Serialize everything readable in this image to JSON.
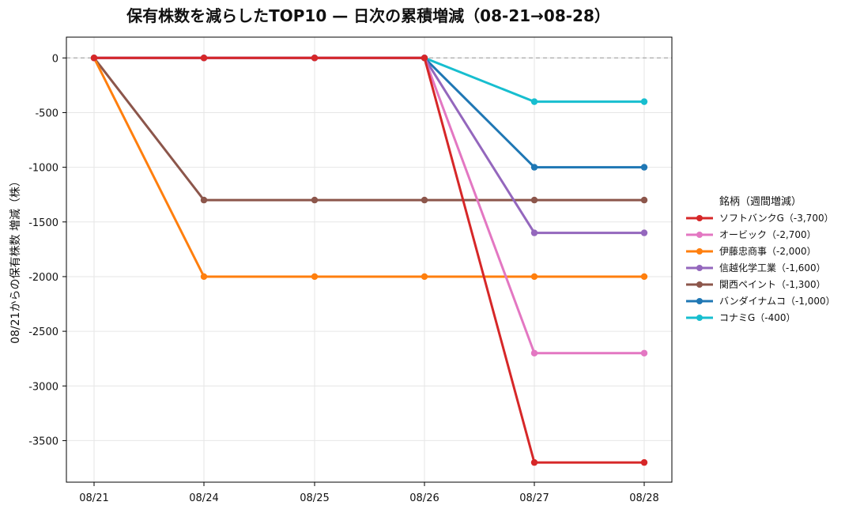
{
  "chart_data": {
    "type": "line",
    "title": "保有株数を減らしたTOP10 — 日次の累積増減（08-21→08-28）",
    "xlabel": "",
    "ylabel": "08/21からの保有株数 増減（株）",
    "categories": [
      "08/21",
      "08/24",
      "08/25",
      "08/26",
      "08/27",
      "08/28"
    ],
    "ylim": [
      -3880,
      190
    ],
    "yticks": [
      0,
      -500,
      -1000,
      -1500,
      -2000,
      -2500,
      -3000,
      -3500
    ],
    "ytick_labels": [
      "0",
      "-500",
      "-1000",
      "-1500",
      "-2000",
      "-2500",
      "-3000",
      "-3500"
    ],
    "grid": true,
    "zero_line": true,
    "legend": {
      "title": "銘柄（週間増減）",
      "placement": "right"
    },
    "series": [
      {
        "name": "ソフトバンクG（-3,700）",
        "color": "#d62728",
        "values": [
          0,
          0,
          0,
          0,
          -3700,
          -3700
        ]
      },
      {
        "name": "オービック（-2,700）",
        "color": "#e377c2",
        "values": [
          0,
          0,
          0,
          0,
          -2700,
          -2700
        ]
      },
      {
        "name": "伊藤忠商事（-2,000）",
        "color": "#ff7f0e",
        "values": [
          0,
          -2000,
          -2000,
          -2000,
          -2000,
          -2000
        ]
      },
      {
        "name": "信越化学工業（-1,600）",
        "color": "#9467bd",
        "values": [
          0,
          0,
          0,
          0,
          -1600,
          -1600
        ]
      },
      {
        "name": "関西ペイント（-1,300）",
        "color": "#8c564b",
        "values": [
          0,
          -1300,
          -1300,
          -1300,
          -1300,
          -1300
        ]
      },
      {
        "name": "バンダイナムコ（-1,000）",
        "color": "#1f77b4",
        "values": [
          0,
          0,
          0,
          0,
          -1000,
          -1000
        ]
      },
      {
        "name": "コナミG（-400）",
        "color": "#17becf",
        "values": [
          0,
          0,
          0,
          0,
          -400,
          -400
        ]
      }
    ]
  }
}
